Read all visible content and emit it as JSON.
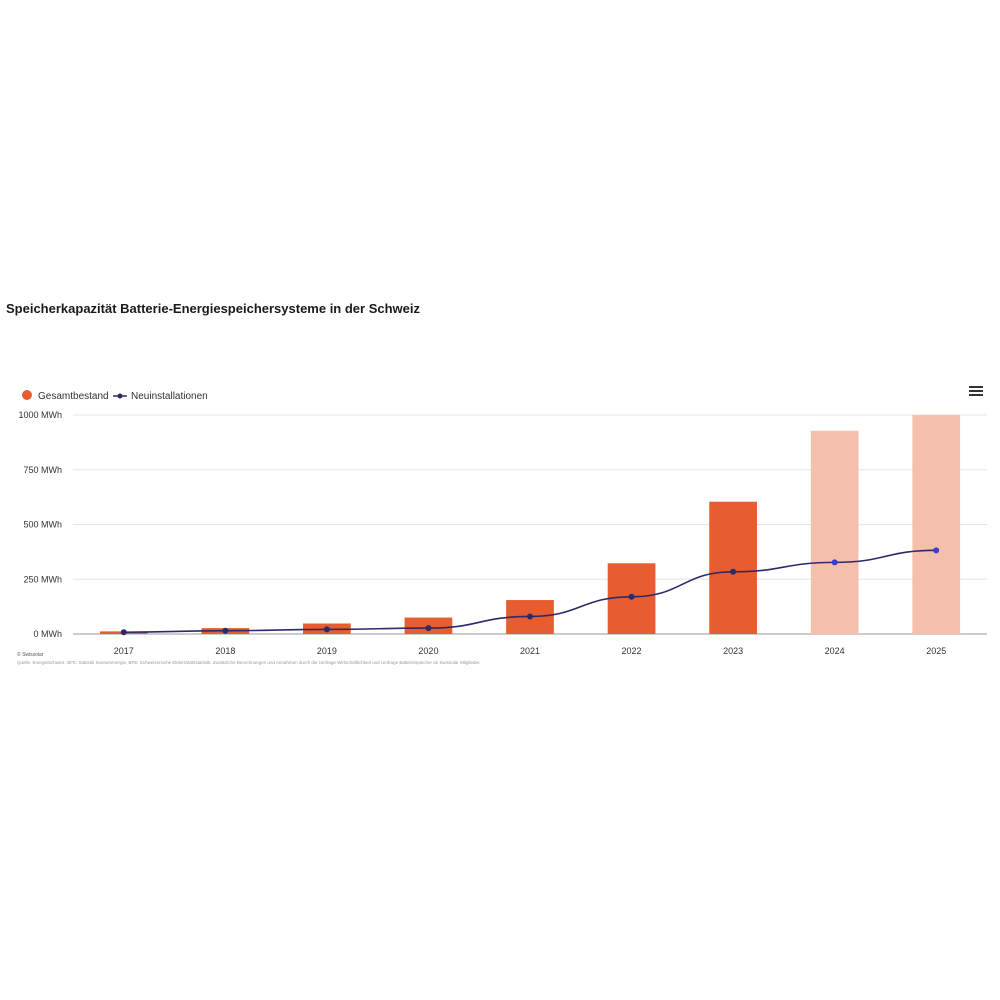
{
  "chart_data": {
    "type": "bar",
    "title": "Speicherkapazität Batterie-Energiespeichersysteme in der Schweiz",
    "categories": [
      "2017",
      "2018",
      "2019",
      "2020",
      "2021",
      "2022",
      "2023",
      "2024",
      "2025"
    ],
    "series": [
      {
        "name": "Gesamtbestand",
        "type": "bar",
        "color": "#e85d2f",
        "projected_color": "#f4bfac",
        "projected_from": "2024",
        "values": [
          12,
          27,
          48,
          75,
          155,
          323,
          604,
          928,
          1000
        ]
      },
      {
        "name": "Neuinstallationen",
        "type": "line",
        "color": "#2b2a6b",
        "values": [
          8,
          15,
          21,
          27,
          80,
          170,
          284,
          327,
          382
        ]
      }
    ],
    "y_ticks": [
      "0 MWh",
      "250 MWh",
      "500 MWh",
      "750 MWh",
      "1000 MWh"
    ],
    "y_tick_values": [
      0,
      250,
      500,
      750,
      1000
    ],
    "ylim": [
      0,
      1000
    ],
    "grid": true,
    "legend_position": "top-left",
    "credit": "© Swissolar",
    "source": "Quelle: EnergieSchweiz, BFE: Statistik Sonnenenergie, BFE: Schweizerische Elektrizitätsstatistik. Zusätzliche Berechnungen und Annahmen durch die Umfrage Wirtschaftlichkeit und Umfrage Batteriespeicher an Swissolar Mitglieder."
  }
}
